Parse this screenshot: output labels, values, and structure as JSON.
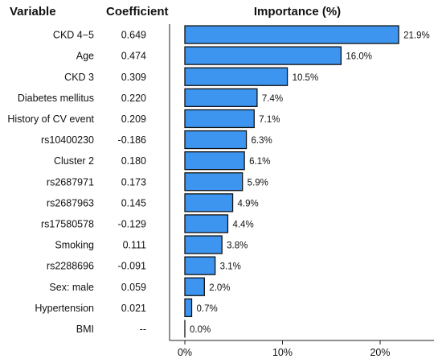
{
  "headers": {
    "variable": "Variable",
    "coefficient": "Coefficient",
    "importance": "Importance (%)"
  },
  "chart_data": {
    "type": "bar",
    "orientation": "horizontal",
    "title": "Importance (%)",
    "categories": [
      "CKD 4−5",
      "Age",
      "CKD 3",
      "Diabetes mellitus",
      "History of CV event",
      "rs10400230",
      "Cluster 2",
      "rs2687971",
      "rs2687963",
      "rs17580578",
      "Smoking",
      "rs2288696",
      "Sex: male",
      "Hypertension",
      "BMI"
    ],
    "coefficients": [
      "0.649",
      "0.474",
      "0.309",
      "0.220",
      "0.209",
      "-0.186",
      "0.180",
      "0.173",
      "0.145",
      "-0.129",
      "0.111",
      "-0.091",
      "0.059",
      "0.021",
      "--"
    ],
    "values": [
      21.9,
      16.0,
      10.5,
      7.4,
      7.1,
      6.3,
      6.1,
      5.9,
      4.9,
      4.4,
      3.8,
      3.1,
      2.0,
      0.7,
      0.0
    ],
    "value_labels": [
      "21.9%",
      "16.0%",
      "10.5%",
      "7.4%",
      "7.1%",
      "6.3%",
      "6.1%",
      "5.9%",
      "4.9%",
      "4.4%",
      "3.8%",
      "3.1%",
      "2.0%",
      "0.7%",
      "0.0%"
    ],
    "xticks": [
      0,
      10,
      20
    ],
    "xtick_labels": [
      "0%",
      "10%",
      "20%"
    ],
    "xlim": [
      0,
      25
    ],
    "grid": false,
    "bar_color": "#3d95f0",
    "bar_edge_color": "#111111"
  }
}
